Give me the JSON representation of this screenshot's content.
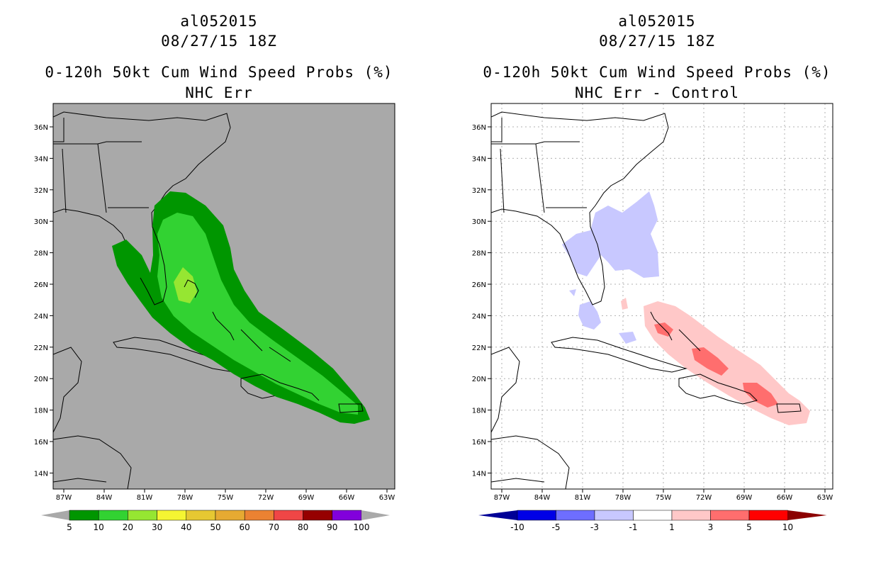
{
  "left_panel": {
    "title_line1": "al052015",
    "title_line2": "08/27/15 18Z",
    "title_line3": "0-120h 50kt Cum Wind Speed Probs (%)",
    "title_line4": "NHC Err",
    "map_background": "#a9a9a9",
    "colorbar": {
      "labels": [
        "5",
        "10",
        "20",
        "30",
        "40",
        "50",
        "60",
        "70",
        "80",
        "90",
        "100"
      ],
      "colors": [
        "#009600",
        "#32d232",
        "#96e632",
        "#f5f532",
        "#e6c832",
        "#e6aa32",
        "#eb8232",
        "#f04646",
        "#960000",
        "#8200dc"
      ],
      "end_color": "#a9a9a9"
    }
  },
  "right_panel": {
    "title_line1": "al052015",
    "title_line2": "08/27/15 18Z",
    "title_line3": "0-120h 50kt Cum Wind Speed Probs (%)",
    "title_line4": "NHC Err - Control",
    "map_background": "#ffffff",
    "colorbar": {
      "labels": [
        "-10",
        "-5",
        "-3",
        "-1",
        "1",
        "3",
        "5",
        "10"
      ],
      "colors": [
        "#0000e6",
        "#6e6eff",
        "#c8c8ff",
        "#ffffff",
        "#ffc8c8",
        "#ff6e6e",
        "#ff0000"
      ],
      "left_end_color": "#000096",
      "right_end_color": "#8c0000"
    }
  },
  "lat_labels": [
    "36N",
    "34N",
    "32N",
    "30N",
    "28N",
    "26N",
    "24N",
    "22N",
    "20N",
    "18N",
    "16N",
    "14N"
  ],
  "lon_labels": [
    "87W",
    "84W",
    "81W",
    "78W",
    "75W",
    "72W",
    "69W",
    "66W",
    "63W"
  ]
}
